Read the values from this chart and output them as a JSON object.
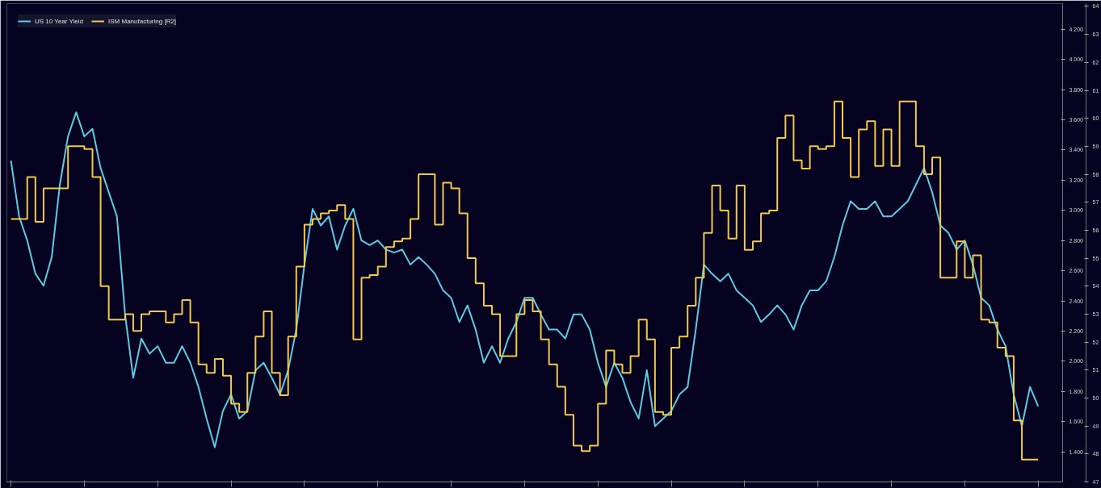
{
  "chart_data": {
    "type": "line",
    "categories": [
      null,
      null,
      null,
      null,
      null,
      null,
      null,
      null,
      null,
      null,
      null,
      null,
      null,
      null,
      null,
      null,
      null,
      null,
      null,
      null,
      null,
      null,
      null,
      null,
      null,
      null,
      null,
      null,
      null,
      null,
      null,
      null,
      null,
      null,
      null,
      null,
      null,
      null,
      null,
      null,
      null,
      null,
      null,
      null,
      null,
      null,
      null,
      null,
      null,
      null,
      null,
      null,
      null,
      null,
      null,
      null,
      null,
      null,
      null,
      null,
      null,
      null,
      null,
      null,
      null,
      null,
      null,
      null,
      null,
      null,
      null,
      null,
      null,
      null,
      null,
      null,
      null,
      null,
      null,
      null,
      null,
      null,
      null,
      null,
      null,
      null,
      null,
      null,
      null,
      null,
      null,
      null,
      null,
      null,
      null,
      null,
      null,
      null,
      null,
      null,
      null,
      null,
      null,
      null,
      null,
      null,
      null,
      null,
      null,
      null,
      null,
      null,
      null,
      null,
      null,
      null,
      null,
      null,
      null,
      null,
      null,
      null,
      null,
      null,
      null,
      null,
      null
    ],
    "series": [
      {
        "name": "US 10 Year Yield",
        "color": "#5ccbe3",
        "values": [
          3.33,
          2.96,
          2.8,
          2.58,
          2.5,
          2.69,
          3.17,
          3.49,
          3.65,
          3.49,
          3.54,
          3.28,
          3.12,
          2.96,
          2.31,
          1.89,
          2.15,
          2.05,
          2.1,
          1.99,
          1.99,
          2.1,
          1.99,
          1.83,
          1.62,
          1.43,
          1.67,
          1.78,
          1.62,
          1.67,
          1.94,
          1.99,
          1.89,
          1.78,
          1.94,
          2.21,
          2.64,
          3.01,
          2.9,
          2.96,
          2.74,
          2.9,
          3.01,
          2.8,
          2.77,
          2.8,
          2.74,
          2.72,
          2.74,
          2.64,
          2.69,
          2.64,
          2.58,
          2.47,
          2.42,
          2.26,
          2.37,
          2.21,
          1.99,
          2.1,
          1.99,
          2.15,
          2.26,
          2.42,
          2.42,
          2.31,
          2.21,
          2.21,
          2.15,
          2.31,
          2.31,
          2.21,
          1.99,
          1.83,
          1.99,
          1.89,
          1.73,
          1.62,
          1.94,
          1.57,
          1.62,
          1.67,
          1.78,
          1.83,
          2.21,
          2.64,
          2.58,
          2.53,
          2.58,
          2.47,
          2.42,
          2.37,
          2.26,
          2.31,
          2.37,
          2.31,
          2.21,
          2.37,
          2.47,
          2.47,
          2.53,
          2.69,
          2.9,
          3.06,
          3.01,
          3.01,
          3.06,
          2.96,
          2.96,
          3.01,
          3.06,
          3.17,
          3.28,
          3.12,
          2.9,
          2.85,
          2.74,
          2.8,
          2.64,
          2.42,
          2.37,
          2.21,
          2.1,
          1.78,
          1.57,
          1.83,
          1.7
        ]
      },
      {
        "name": "ISM Manufacturing [R2]",
        "type": "step",
        "axis": "y2",
        "color": "#f2c94c",
        "values": [
          56.4,
          56.4,
          57.9,
          56.3,
          57.5,
          57.5,
          57.5,
          59.0,
          59.0,
          58.9,
          57.9,
          54.0,
          52.8,
          52.8,
          53.0,
          52.4,
          53.0,
          53.1,
          53.1,
          52.7,
          53.0,
          53.5,
          52.7,
          51.2,
          50.9,
          51.4,
          50.8,
          49.8,
          49.5,
          50.9,
          52.2,
          53.1,
          50.9,
          50.1,
          52.2,
          54.7,
          56.2,
          56.4,
          56.6,
          56.7,
          56.9,
          56.4,
          52.1,
          54.3,
          54.4,
          54.7,
          55.4,
          55.6,
          55.7,
          56.4,
          58.0,
          58.0,
          56.2,
          57.7,
          57.5,
          56.6,
          55.0,
          54.1,
          53.3,
          53.0,
          51.5,
          51.5,
          53.0,
          53.5,
          53.1,
          52.1,
          51.2,
          50.4,
          49.4,
          48.3,
          48.1,
          48.3,
          49.8,
          51.7,
          51.2,
          50.9,
          51.5,
          52.8,
          52.1,
          49.5,
          49.4,
          51.8,
          52.2,
          53.3,
          54.3,
          55.9,
          57.6,
          56.7,
          55.7,
          57.6,
          55.3,
          55.6,
          56.6,
          56.7,
          59.3,
          60.1,
          58.5,
          58.2,
          59.0,
          58.9,
          59.0,
          60.6,
          59.3,
          57.9,
          59.6,
          59.9,
          58.3,
          59.6,
          58.3,
          60.6,
          60.6,
          59.0,
          58.0,
          58.6,
          54.3,
          54.3,
          55.6,
          54.3,
          55.1,
          52.8,
          52.7,
          51.8,
          51.5,
          49.2,
          47.8,
          47.8,
          47.8
        ]
      }
    ],
    "ylim": [
      1.2,
      4.37
    ],
    "yticks": [
      {
        "value": 1.4,
        "label": "1.400"
      },
      {
        "value": 1.6,
        "label": "1.600"
      },
      {
        "value": 1.8,
        "label": "1.800"
      },
      {
        "value": 2.0,
        "label": "2.000"
      },
      {
        "value": 2.2,
        "label": "2.200"
      },
      {
        "value": 2.4,
        "label": "2.400"
      },
      {
        "value": 2.6,
        "label": "2.600"
      },
      {
        "value": 2.8,
        "label": "2.800"
      },
      {
        "value": 3.0,
        "label": "3.000"
      },
      {
        "value": 3.2,
        "label": "3.200"
      },
      {
        "value": 3.4,
        "label": "3.400"
      },
      {
        "value": 3.6,
        "label": "3.600"
      },
      {
        "value": 3.8,
        "label": "3.800"
      },
      {
        "value": 4.0,
        "label": "4.000"
      },
      {
        "value": 4.2,
        "label": "4.200"
      }
    ],
    "y2lim": [
      47,
      64.1
    ],
    "y2ticks": [
      47,
      48,
      49,
      50,
      51,
      52,
      53,
      54,
      55,
      56,
      57,
      58,
      59,
      60,
      61,
      62,
      63,
      64
    ],
    "legend": "top left",
    "grid": false
  }
}
